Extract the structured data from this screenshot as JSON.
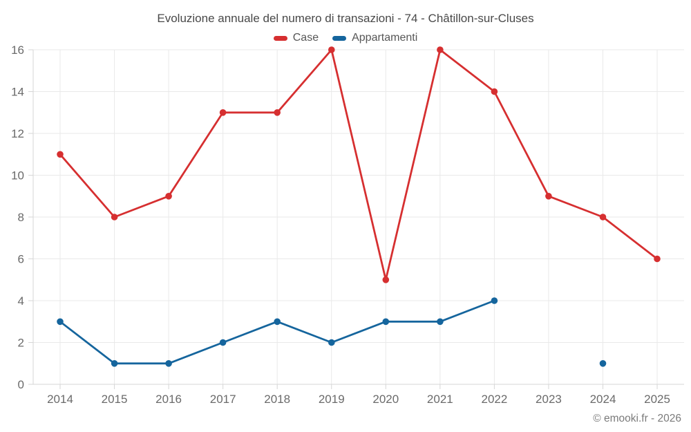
{
  "chart_data": {
    "type": "line",
    "title": "Evoluzione annuale del numero di transazioni - 74 - Châtillon-sur-Cluses",
    "x": [
      2014,
      2015,
      2016,
      2017,
      2018,
      2019,
      2020,
      2021,
      2022,
      2023,
      2024,
      2025
    ],
    "series": [
      {
        "name": "Case",
        "color": "#d62f30",
        "values": [
          11,
          8,
          9,
          13,
          13,
          16,
          5,
          16,
          14,
          9,
          8,
          6
        ]
      },
      {
        "name": "Appartamenti",
        "color": "#15659d",
        "values": [
          3,
          1,
          1,
          2,
          3,
          2,
          3,
          3,
          4,
          null,
          1,
          null
        ]
      }
    ],
    "xlabel": "",
    "ylabel": "",
    "ylim": [
      0,
      16
    ],
    "yticks": [
      0,
      2,
      4,
      6,
      8,
      10,
      12,
      14,
      16
    ],
    "grid": true,
    "legend_position": "top-center"
  },
  "footer": {
    "credit": "© emooki.fr - 2026"
  },
  "theme": {
    "background": "#ffffff",
    "grid": "#e9e9e9",
    "axis": "#d6d6d6",
    "tick_label": "#6a6a6a",
    "title": "#484848",
    "legend_text": "#565656",
    "footer_text": "#7a7a7a"
  }
}
